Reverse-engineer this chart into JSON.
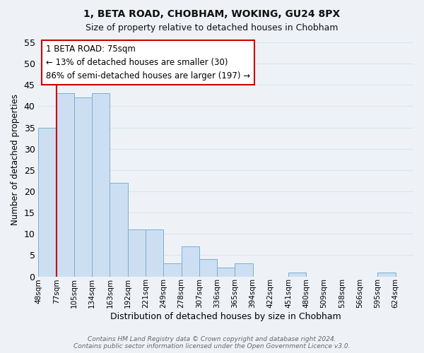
{
  "title1": "1, BETA ROAD, CHOBHAM, WOKING, GU24 8PX",
  "title2": "Size of property relative to detached houses in Chobham",
  "xlabel": "Distribution of detached houses by size in Chobham",
  "ylabel": "Number of detached properties",
  "bin_labels": [
    "48sqm",
    "77sqm",
    "105sqm",
    "134sqm",
    "163sqm",
    "192sqm",
    "221sqm",
    "249sqm",
    "278sqm",
    "307sqm",
    "336sqm",
    "365sqm",
    "394sqm",
    "422sqm",
    "451sqm",
    "480sqm",
    "509sqm",
    "538sqm",
    "566sqm",
    "595sqm",
    "624sqm"
  ],
  "bar_heights": [
    35,
    43,
    42,
    43,
    22,
    11,
    11,
    3,
    7,
    4,
    2,
    3,
    0,
    0,
    1,
    0,
    0,
    0,
    0,
    1,
    0
  ],
  "bar_color": "#ccdff2",
  "bar_edge_color": "#7aafce",
  "highlight_line_color": "#cc0000",
  "annotation_text": "1 BETA ROAD: 75sqm\n← 13% of detached houses are smaller (30)\n86% of semi-detached houses are larger (197) →",
  "annotation_box_color": "#ffffff",
  "annotation_box_edge": "#cc0000",
  "ylim": [
    0,
    55
  ],
  "yticks": [
    0,
    5,
    10,
    15,
    20,
    25,
    30,
    35,
    40,
    45,
    50,
    55
  ],
  "footer": "Contains HM Land Registry data © Crown copyright and database right 2024.\nContains public sector information licensed under the Open Government Licence v3.0.",
  "grid_color": "#d8e4f0",
  "background_color": "#eef2f7"
}
